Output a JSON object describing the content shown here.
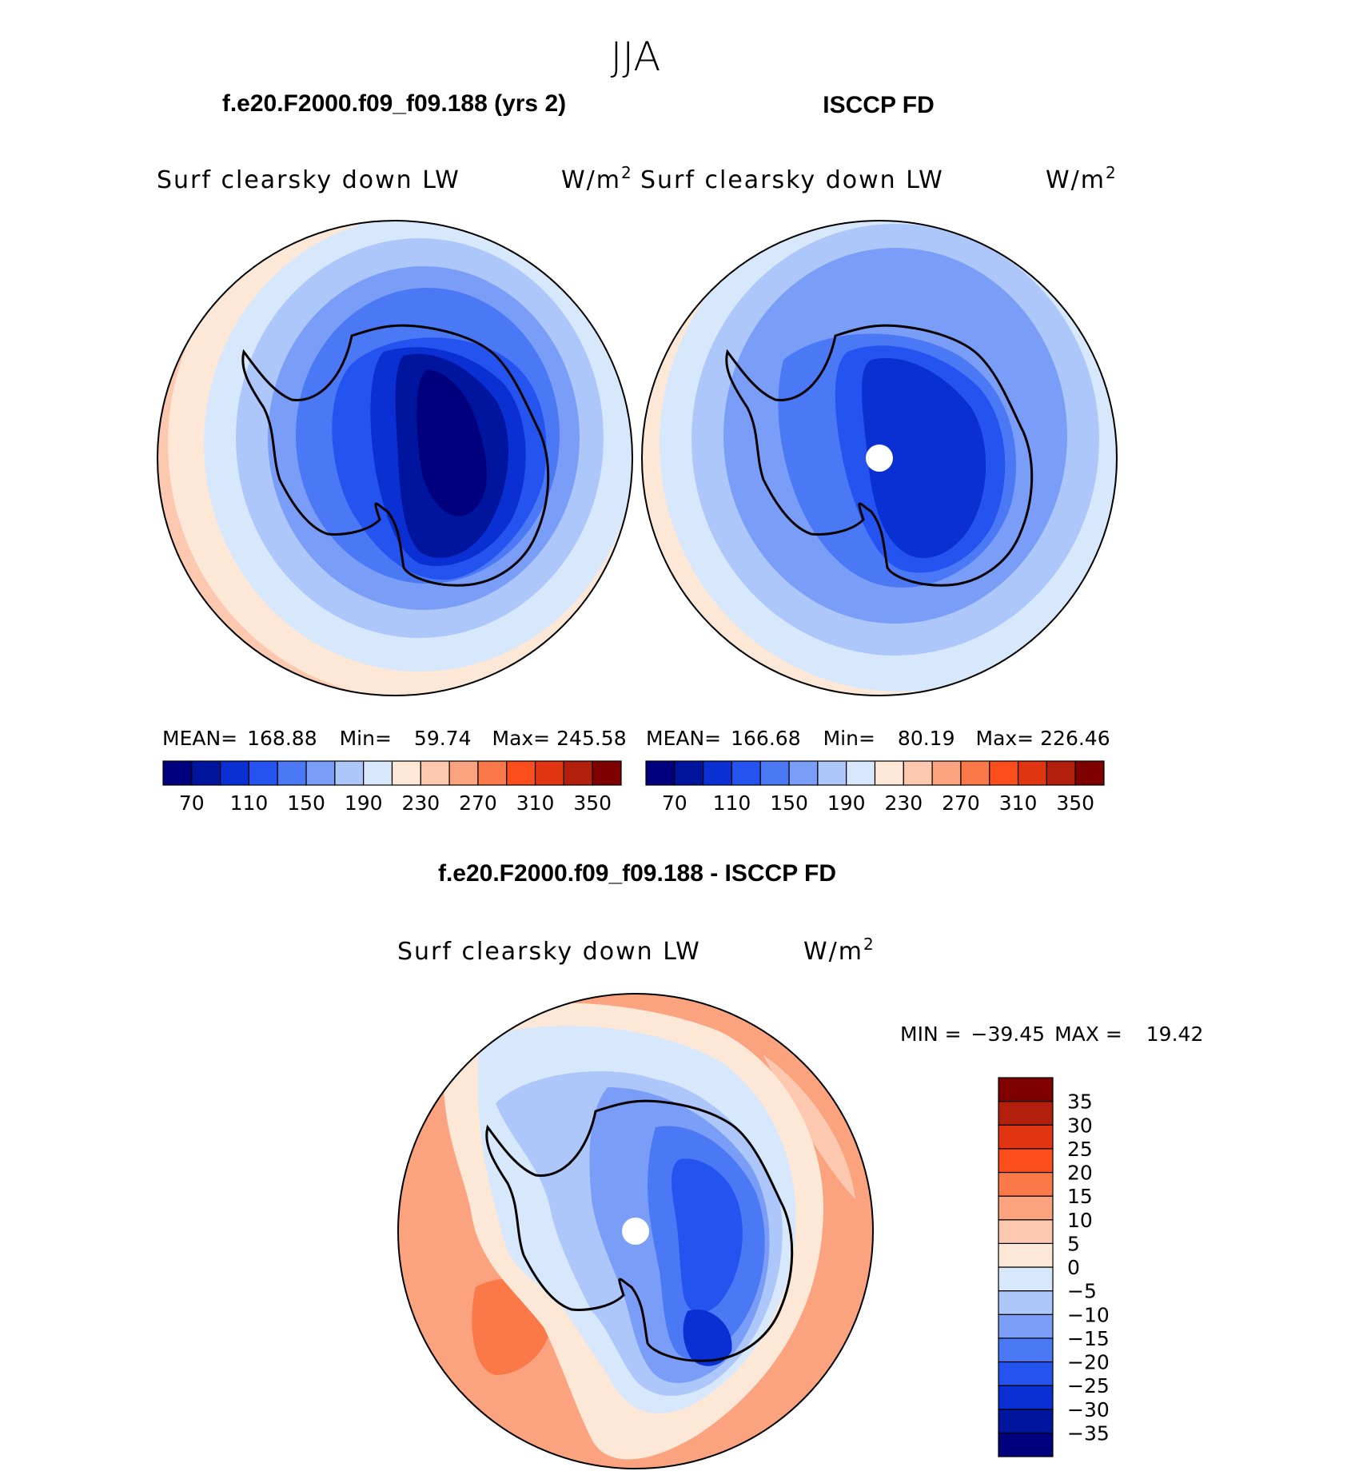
{
  "title": "JJA",
  "chart_data": [
    {
      "type": "heatmap",
      "id": "model",
      "title": "f.e20.F2000.f09_f09.188 (yrs 2)",
      "variable": "Surf clearsky down LW",
      "units": "W/m",
      "units_exp": "2",
      "stats": {
        "mean_label": "MEAN=",
        "mean": "168.88",
        "min_label": "Min=",
        "min": "59.74",
        "max_label": "Max=",
        "max": "245.58"
      },
      "levels": [
        70,
        90,
        110,
        130,
        150,
        170,
        190,
        210,
        230,
        250,
        270,
        290,
        310,
        330,
        350
      ],
      "tick_labels": [
        "70",
        "110",
        "150",
        "190",
        "230",
        "270",
        "310",
        "350"
      ],
      "colors": [
        "#00007f",
        "#00159e",
        "#0a2fd2",
        "#2553f0",
        "#4b78f5",
        "#7a9ef8",
        "#aec7fb",
        "#d7e8fd",
        "#fde7d6",
        "#fcc9b0",
        "#fba27f",
        "#fb7848",
        "#fc4d1c",
        "#e13512",
        "#b21f0d",
        "#7f0000"
      ]
    },
    {
      "type": "heatmap",
      "id": "obs",
      "title": "ISCCP FD",
      "variable": "Surf clearsky down LW",
      "units": "W/m",
      "units_exp": "2",
      "stats": {
        "mean_label": "MEAN=",
        "mean": "166.68",
        "min_label": "Min=",
        "min": "80.19",
        "max_label": "Max=",
        "max": "226.46"
      },
      "levels": [
        70,
        90,
        110,
        130,
        150,
        170,
        190,
        210,
        230,
        250,
        270,
        290,
        310,
        330,
        350
      ],
      "tick_labels": [
        "70",
        "110",
        "150",
        "190",
        "230",
        "270",
        "310",
        "350"
      ],
      "colors": [
        "#00007f",
        "#00159e",
        "#0a2fd2",
        "#2553f0",
        "#4b78f5",
        "#7a9ef8",
        "#aec7fb",
        "#d7e8fd",
        "#fde7d6",
        "#fcc9b0",
        "#fba27f",
        "#fb7848",
        "#fc4d1c",
        "#e13512",
        "#b21f0d",
        "#7f0000"
      ]
    },
    {
      "type": "heatmap",
      "id": "diff",
      "title": "f.e20.F2000.f09_f09.188 - ISCCP FD",
      "variable": "Surf clearsky down LW",
      "units": "W/m",
      "units_exp": "2",
      "stats": {
        "min_label": "MIN =",
        "min": "−39.45",
        "max_label": "MAX =",
        "max": "19.42"
      },
      "levels": [
        -35,
        -30,
        -25,
        -20,
        -15,
        -10,
        -5,
        0,
        5,
        10,
        15,
        20,
        25,
        30,
        35
      ],
      "tick_labels": [
        "−35",
        "−30",
        "−25",
        "−20",
        "−15",
        "−10",
        "−5",
        "0",
        "5",
        "10",
        "15",
        "20",
        "25",
        "30",
        "35"
      ],
      "colors": [
        "#00007f",
        "#00159e",
        "#0a2fd2",
        "#2553f0",
        "#4b78f5",
        "#7a9ef8",
        "#aec7fb",
        "#d7e8fd",
        "#fde7d6",
        "#fcc9b0",
        "#fba27f",
        "#fb7848",
        "#fc4d1c",
        "#e13512",
        "#b21f0d",
        "#7f0000"
      ]
    }
  ]
}
